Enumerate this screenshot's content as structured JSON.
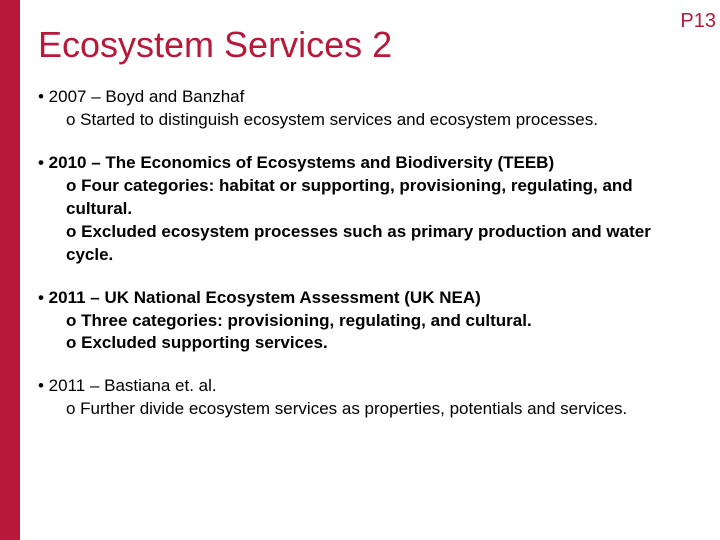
{
  "colors": {
    "sidebar": "#b8193a",
    "title": "#b8193a",
    "pageNum": "#b8193a",
    "text": "#000000",
    "background": "#ffffff"
  },
  "pageNumber": "P13",
  "title": "Ecosystem Services 2",
  "sections": [
    {
      "bold": false,
      "head": "• 2007 – Boyd and Banzhaf",
      "subs": [
        "o   Started to distinguish ecosystem services and ecosystem processes."
      ]
    },
    {
      "bold": true,
      "head": "• 2010 – The Economics of Ecosystems and Biodiversity (TEEB)",
      "subs": [
        "o   Four categories: habitat or supporting, provisioning, regulating, and cultural.",
        "o   Excluded ecosystem processes such as primary production and water cycle."
      ]
    },
    {
      "bold": true,
      "head": "• 2011 – UK National Ecosystem Assessment (UK NEA)",
      "subs": [
        "o   Three categories: provisioning, regulating, and cultural.",
        "o   Excluded supporting services."
      ]
    },
    {
      "bold": false,
      "head": "• 2011 – Bastiana et. al.",
      "subs": [
        "o   Further divide ecosystem services as properties, potentials and services."
      ]
    }
  ]
}
